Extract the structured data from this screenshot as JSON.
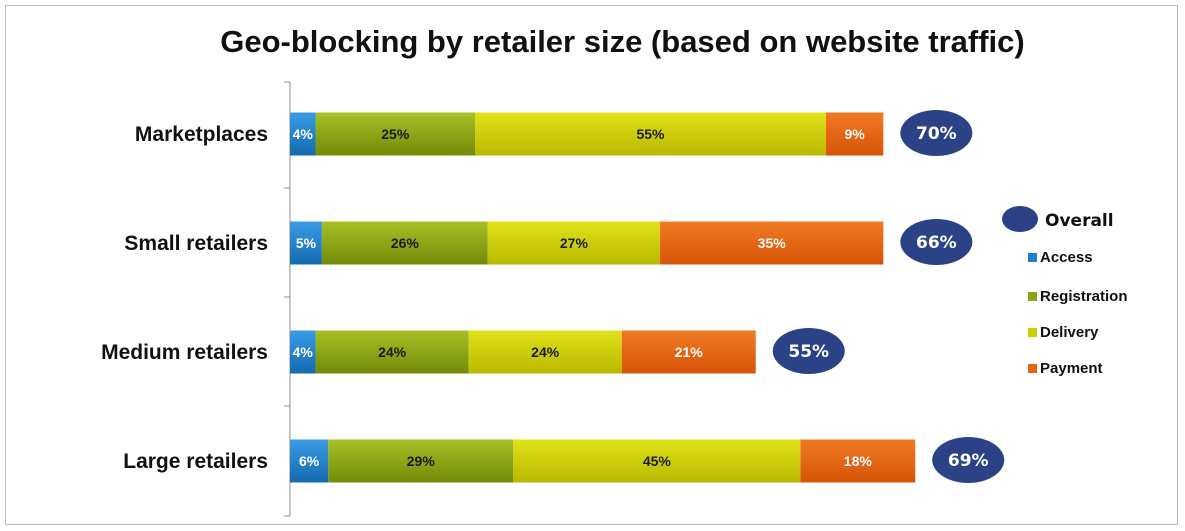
{
  "chart_data": {
    "type": "bar",
    "orientation": "horizontal",
    "stacked": true,
    "title": "Geo-blocking by retailer size (based on website traffic)",
    "categories": [
      "Marketplaces",
      "Small retailers",
      "Medium retailers",
      "Large retailers"
    ],
    "series": [
      {
        "name": "Access",
        "color": "#1f7fcc",
        "labels": [
          "4%",
          "5%",
          "4%",
          "6%"
        ],
        "values": [
          4,
          5,
          4,
          6
        ]
      },
      {
        "name": "Registration",
        "color": "#8aa410",
        "labels": [
          "25%",
          "26%",
          "24%",
          "29%"
        ],
        "values": [
          25,
          26,
          24,
          29
        ]
      },
      {
        "name": "Delivery",
        "color": "#cdcd00",
        "labels": [
          "55%",
          "27%",
          "24%",
          "45%"
        ],
        "values": [
          55,
          27,
          24,
          45
        ]
      },
      {
        "name": "Payment",
        "color": "#e8620f",
        "labels": [
          "9%",
          "35%",
          "21%",
          "18%"
        ],
        "values": [
          9,
          35,
          21,
          18
        ]
      }
    ],
    "overall": {
      "name": "Overall",
      "color": "#2b4386",
      "labels": [
        "70%",
        "66%",
        "55%",
        "69%"
      ],
      "values": [
        70,
        66,
        55,
        69
      ]
    },
    "legend_position": "right",
    "grid": false
  }
}
